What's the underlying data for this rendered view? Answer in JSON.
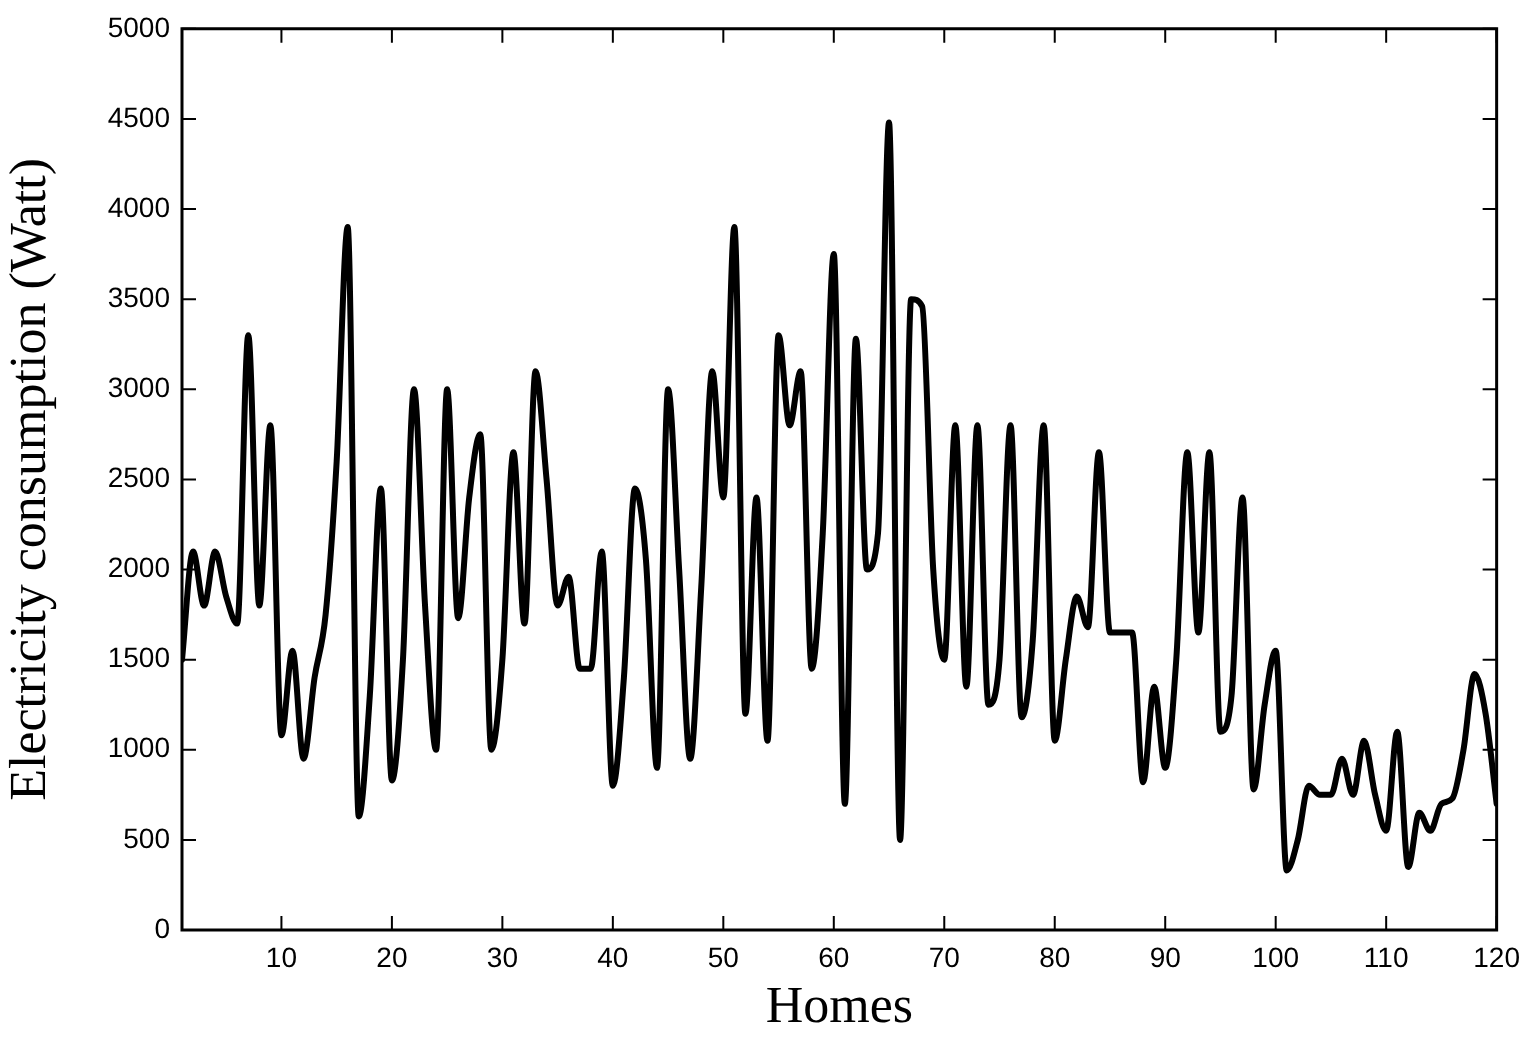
{
  "chart_data": {
    "type": "line",
    "xlabel": "Homes",
    "ylabel": "Electricity consumption (Watt)",
    "x": [
      1,
      2,
      3,
      4,
      5,
      6,
      7,
      8,
      9,
      10,
      11,
      12,
      13,
      14,
      15,
      16,
      17,
      18,
      19,
      20,
      21,
      22,
      23,
      24,
      25,
      26,
      27,
      28,
      29,
      30,
      31,
      32,
      33,
      34,
      35,
      36,
      37,
      38,
      39,
      40,
      41,
      42,
      43,
      44,
      45,
      46,
      47,
      48,
      49,
      50,
      51,
      52,
      53,
      54,
      55,
      56,
      57,
      58,
      59,
      60,
      61,
      62,
      63,
      64,
      65,
      66,
      67,
      68,
      69,
      70,
      71,
      72,
      73,
      74,
      75,
      76,
      77,
      78,
      79,
      80,
      81,
      82,
      83,
      84,
      85,
      86,
      87,
      88,
      89,
      90,
      91,
      92,
      93,
      94,
      95,
      96,
      97,
      98,
      99,
      100,
      101,
      102,
      103,
      104,
      105,
      106,
      107,
      108,
      109,
      110,
      111,
      112,
      113,
      114,
      115,
      116,
      117,
      118,
      119,
      120
    ],
    "series": [
      {
        "color": "#000000",
        "values": [
          1500,
          2100,
          1800,
          2100,
          1850,
          1700,
          3300,
          1800,
          2800,
          1080,
          1550,
          950,
          1400,
          1750,
          2600,
          3900,
          630,
          1300,
          2450,
          830,
          1500,
          3000,
          1800,
          1000,
          3000,
          1730,
          2400,
          2750,
          1000,
          1500,
          2650,
          1700,
          3100,
          2500,
          1800,
          1960,
          1450,
          1450,
          2100,
          800,
          1400,
          2450,
          2050,
          900,
          3000,
          2000,
          950,
          1900,
          3100,
          2400,
          3900,
          1200,
          2400,
          1050,
          3300,
          2800,
          3100,
          1450,
          2200,
          3750,
          700,
          3280,
          2000,
          2200,
          4480,
          500,
          3500,
          3460,
          2000,
          1500,
          2800,
          1350,
          2800,
          1250,
          1500,
          2800,
          1180,
          1600,
          2800,
          1050,
          1500,
          1850,
          1680,
          2650,
          1650,
          1650,
          1650,
          820,
          1350,
          900,
          1500,
          2650,
          1650,
          2650,
          1100,
          1300,
          2400,
          780,
          1250,
          1550,
          330,
          500,
          800,
          750,
          750,
          950,
          750,
          1050,
          750,
          550,
          1100,
          350,
          650,
          550,
          700,
          730,
          1000,
          1420,
          1200,
          700
        ]
      }
    ],
    "xlim": [
      1,
      120
    ],
    "xticks": [
      10,
      20,
      30,
      40,
      50,
      60,
      70,
      80,
      90,
      100,
      110,
      120
    ],
    "ylim": [
      0,
      5000
    ],
    "yticks": [
      0,
      500,
      1000,
      1500,
      2000,
      2500,
      3000,
      3500,
      4000,
      4500,
      5000
    ],
    "legend": false,
    "marker": "none",
    "line_style": "solid"
  }
}
